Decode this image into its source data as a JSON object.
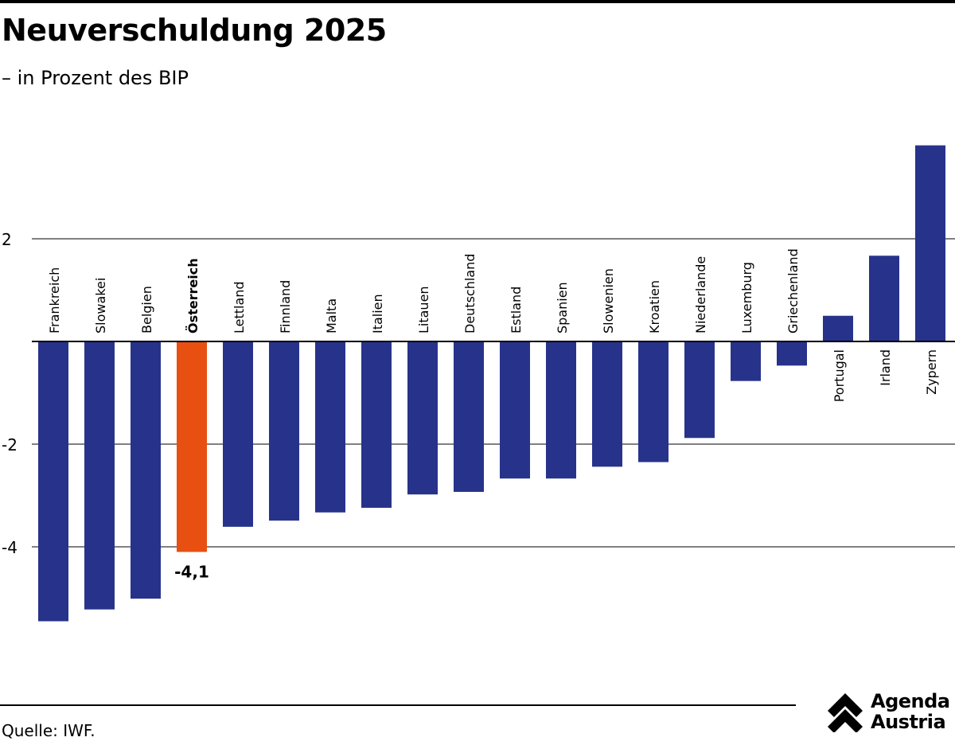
{
  "title": "Neuverschuldung 2025",
  "subtitle": "– in Prozent des BIP",
  "source": "Quelle: IWF.",
  "logo": {
    "line1": "Agenda",
    "line2": "Austria",
    "icon": "double-chevron-up-icon"
  },
  "colors": {
    "bar": "#27338a",
    "highlight": "#e85012",
    "grid": "#000000"
  },
  "chart_data": {
    "type": "bar",
    "title": "Neuverschuldung 2025",
    "subtitle": "– in Prozent des BIP",
    "xlabel": "",
    "ylabel": "",
    "categories": [
      "Frankreich",
      "Slowakei",
      "Belgien",
      "Österreich",
      "Lettland",
      "Finnland",
      "Malta",
      "Italien",
      "Litauen",
      "Deutschland",
      "Estland",
      "Spanien",
      "Slowenien",
      "Kroatien",
      "Niederlande",
      "Luxemburg",
      "Griechenland",
      "Portugal",
      "Irland",
      "Zypern"
    ],
    "values": [
      -5.45,
      -5.22,
      -5.01,
      -4.1,
      -3.61,
      -3.49,
      -3.33,
      -3.24,
      -2.98,
      -2.93,
      -2.67,
      -2.67,
      -2.44,
      -2.35,
      -1.88,
      -0.77,
      -0.47,
      0.5,
      1.67,
      3.82
    ],
    "highlight": "Österreich",
    "highlight_label": "-4,1",
    "yticks": [
      2,
      -2,
      -4
    ],
    "ylim": [
      -6.5,
      4.4
    ],
    "grid": true,
    "legend": "none"
  }
}
